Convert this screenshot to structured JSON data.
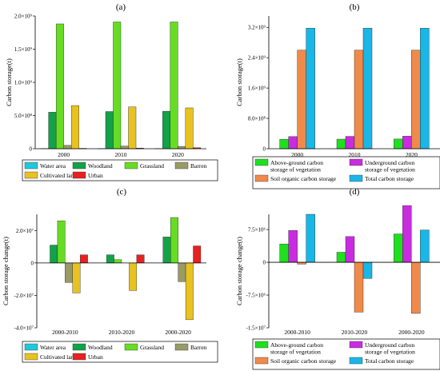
{
  "chart_data": [
    {
      "panel": "(a)",
      "type": "bar",
      "ylabel": "Carbon storage(t)",
      "categories": [
        "2000",
        "2010",
        "2020"
      ],
      "ylim": [
        0,
        2000000000
      ],
      "yticks": [
        {
          "value": 0,
          "label": "0"
        },
        {
          "value": 500000000,
          "label": "5.0×10⁸"
        },
        {
          "value": 1000000000,
          "label": "1.0×10⁹"
        },
        {
          "value": 1500000000,
          "label": "1.5×10⁹"
        },
        {
          "value": 2000000000,
          "label": "2.0×10⁹"
        }
      ],
      "series": [
        {
          "name": "Water area",
          "color": "#1fc8dc",
          "values": [
            2000000,
            2000000,
            2000000
          ]
        },
        {
          "name": "Woodland",
          "color": "#13a14a",
          "values": [
            550000000,
            560000000,
            565000000
          ]
        },
        {
          "name": "Grassland",
          "color": "#66dd22",
          "values": [
            1880000000,
            1910000000,
            1910000000
          ]
        },
        {
          "name": "Barren",
          "color": "#9a9a66",
          "values": [
            50000000,
            40000000,
            35000000
          ]
        },
        {
          "name": "Cultivated land",
          "color": "#e8c21e",
          "values": [
            650000000,
            630000000,
            615000000
          ]
        },
        {
          "name": "Urban",
          "color": "#e82020",
          "values": [
            6000000,
            10000000,
            15000000
          ]
        }
      ],
      "legend": {
        "rows": [
          [
            "Water area",
            "Woodland",
            "Grassland",
            "Barren"
          ],
          [
            "Cultivated land",
            "Urban"
          ]
        ]
      }
    },
    {
      "panel": "(b)",
      "type": "bar",
      "ylabel": "Carbon storage(t)",
      "categories": [
        "2000",
        "2010",
        "2020"
      ],
      "ylim": [
        0,
        3500000000
      ],
      "yticks": [
        {
          "value": 0,
          "label": "0"
        },
        {
          "value": 800000000,
          "label": "8.0×10⁸"
        },
        {
          "value": 1600000000,
          "label": "1.6×10⁹"
        },
        {
          "value": 2400000000,
          "label": "2.4×10⁹"
        },
        {
          "value": 3200000000,
          "label": "3.2×10⁹"
        }
      ],
      "series": [
        {
          "name": "Above-ground carbon storage of vegetation",
          "color": "#1ee01e",
          "values": [
            250000000,
            252000000,
            255000000
          ]
        },
        {
          "name": "Underground carbon storage of vegetation",
          "color": "#c92ce0",
          "values": [
            320000000,
            325000000,
            330000000
          ]
        },
        {
          "name": "Soil organic carbon storage",
          "color": "#f08a4a",
          "values": [
            2600000000,
            2600000000,
            2600000000
          ]
        },
        {
          "name": "Total carbon storage",
          "color": "#1ab6e6",
          "values": [
            3180000000,
            3180000000,
            3180000000
          ]
        }
      ],
      "legend": {
        "rows": [
          [
            "Above-ground carbon storage of vegetation",
            "Underground carbon storage of vegetation"
          ],
          [
            "Soil organic carbon storage",
            "Total carbon storage"
          ]
        ]
      }
    },
    {
      "panel": "(c)",
      "type": "bar",
      "ylabel": "Carbon storage change(t)",
      "categories": [
        "2000-2010",
        "2010-2020",
        "2000-2020"
      ],
      "ylim": [
        -40000000,
        30000000
      ],
      "yticks": [
        {
          "value": -40000000,
          "label": "-4.0×10⁷"
        },
        {
          "value": -20000000,
          "label": "-2.0×10⁷"
        },
        {
          "value": 0,
          "label": "0"
        },
        {
          "value": 20000000,
          "label": "2.0×10⁷"
        }
      ],
      "series": [
        {
          "name": "Water area",
          "color": "#1fc8dc",
          "values": [
            0,
            0,
            0
          ]
        },
        {
          "name": "Woodland",
          "color": "#13a14a",
          "values": [
            11000000,
            5000000,
            16000000
          ]
        },
        {
          "name": "Grassland",
          "color": "#66dd22",
          "values": [
            26000000,
            2000000,
            28000000
          ]
        },
        {
          "name": "Barren",
          "color": "#9a9a66",
          "values": [
            -12000000,
            0,
            -11500000
          ]
        },
        {
          "name": "Cultivated land",
          "color": "#e8c21e",
          "values": [
            -18500000,
            -17000000,
            -35000000
          ]
        },
        {
          "name": "Urban",
          "color": "#e82020",
          "values": [
            5000000,
            5000000,
            10500000
          ]
        }
      ],
      "legend": {
        "rows": [
          [
            "Water area",
            "Woodland",
            "Grassland",
            "Barren"
          ],
          [
            "Cultivated land",
            "Urban"
          ]
        ]
      }
    },
    {
      "panel": "(d)",
      "type": "bar",
      "ylabel": "Carbon storage change(t)",
      "categories": [
        "2000-2010",
        "2010-2020",
        "2000-2020"
      ],
      "ylim": [
        -15000000,
        11000000
      ],
      "yticks": [
        {
          "value": -15000000,
          "label": "-1.5×10⁷"
        },
        {
          "value": -7500000,
          "label": "-7.5×10⁶"
        },
        {
          "value": 0,
          "label": "0"
        },
        {
          "value": 7500000,
          "label": "7.5×10⁶"
        }
      ],
      "series": [
        {
          "name": "Above-ground carbon storage of vegetation",
          "color": "#1ee01e",
          "values": [
            4200000,
            2300000,
            6500000
          ]
        },
        {
          "name": "Underground carbon storage of vegetation",
          "color": "#c92ce0",
          "values": [
            7300000,
            5900000,
            13000000
          ]
        },
        {
          "name": "Soil organic carbon storage",
          "color": "#f08a4a",
          "values": [
            -400000,
            -11400000,
            -11700000
          ]
        },
        {
          "name": "Total carbon storage",
          "color": "#1ab6e6",
          "values": [
            11000000,
            -3700000,
            7400000
          ]
        }
      ],
      "legend": {
        "rows": [
          [
            "Above-ground carbon storage of vegetation",
            "Underground carbon storage of vegetation"
          ],
          [
            "Soil organic carbon storage",
            "Total carbon storage"
          ]
        ]
      }
    }
  ]
}
